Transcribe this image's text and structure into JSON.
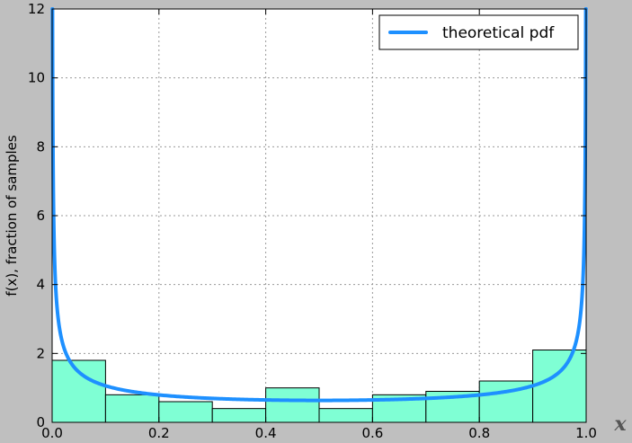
{
  "chart_data": {
    "type": "bar",
    "title": "",
    "xlabel": "x",
    "ylabel": "f(x), fraction of samples",
    "xlim": [
      0.0,
      1.0
    ],
    "ylim": [
      0,
      12
    ],
    "xticks": [
      "0.0",
      "0.2",
      "0.4",
      "0.6",
      "0.8",
      "1.0"
    ],
    "yticks": [
      "0",
      "2",
      "4",
      "6",
      "8",
      "10",
      "12"
    ],
    "grid": true,
    "legend": {
      "placement": "top-right",
      "entries": [
        "theoretical pdf"
      ]
    },
    "histogram": {
      "bin_edges": [
        0.0,
        0.1,
        0.2,
        0.3,
        0.4,
        0.5,
        0.6,
        0.7,
        0.8,
        0.9,
        1.0
      ],
      "values": [
        1.8,
        0.8,
        0.6,
        0.4,
        1.0,
        0.4,
        0.8,
        0.9,
        1.2,
        2.1
      ],
      "color": "#7fffd4"
    },
    "series": [
      {
        "name": "theoretical pdf",
        "type": "line",
        "function": "1/(pi*sqrt(x*(1-x)))",
        "color": "#1e90ff"
      }
    ]
  }
}
